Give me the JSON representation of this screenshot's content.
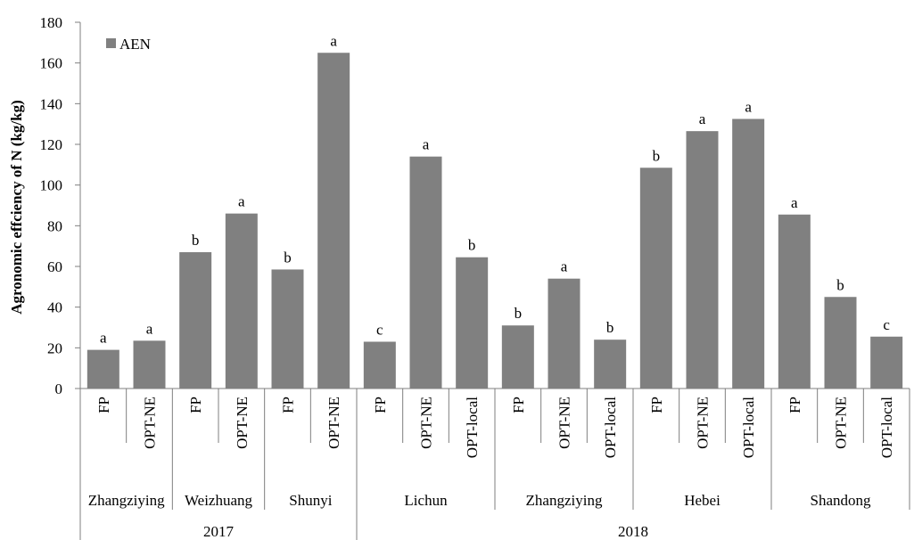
{
  "chart_data": {
    "type": "bar",
    "ylabel": "Agronomic effciency of N (kg/kg)",
    "xlabel": "",
    "ylim": [
      0,
      180
    ],
    "yticks": [
      0,
      20,
      40,
      60,
      80,
      100,
      120,
      140,
      160,
      180
    ],
    "grid": false,
    "legend_position": "top-left",
    "series": [
      {
        "name": "AEN",
        "color": "#808080",
        "values": [
          19,
          23.5,
          67,
          86,
          58.5,
          165,
          23,
          114,
          64.5,
          31,
          54,
          24,
          108.5,
          126.5,
          132.5,
          85.5,
          45,
          25.5
        ]
      }
    ],
    "categories": [
      "FP",
      "OPT-NE",
      "FP",
      "OPT-NE",
      "FP",
      "OPT-NE",
      "FP",
      "OPT-NE",
      "OPT-local",
      "FP",
      "OPT-NE",
      "OPT-local",
      "FP",
      "OPT-NE",
      "OPT-local",
      "FP",
      "OPT-NE",
      "OPT-local"
    ],
    "significance": [
      "a",
      "a",
      "b",
      "a",
      "b",
      "a",
      "c",
      "a",
      "b",
      "b",
      "a",
      "b",
      "b",
      "a",
      "a",
      "a",
      "b",
      "c"
    ],
    "sites": [
      {
        "label": "Zhangziying",
        "count": 2
      },
      {
        "label": "Weizhuang",
        "count": 2
      },
      {
        "label": "Shunyi",
        "count": 2
      },
      {
        "label": "Lichun",
        "count": 3
      },
      {
        "label": "Zhangziying",
        "count": 3
      },
      {
        "label": "Hebei",
        "count": 3
      },
      {
        "label": "Shandong",
        "count": 3
      }
    ],
    "years": [
      {
        "label": "2017",
        "count": 6
      },
      {
        "label": "2018",
        "count": 12
      }
    ]
  }
}
